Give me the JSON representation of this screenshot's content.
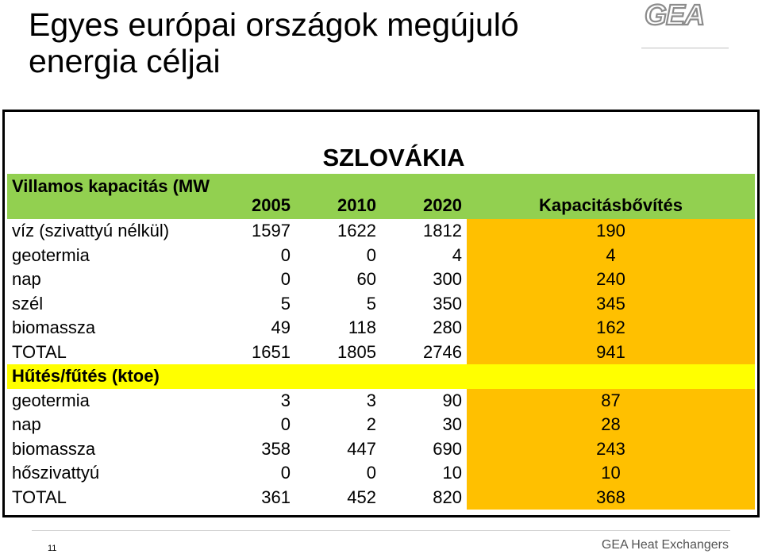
{
  "title": "Egyes európai országok megújuló energia céljai",
  "logo_text": "GEA",
  "country": "SZLOVÁKIA",
  "headers": {
    "label": "Villamos kapacitás (MW)",
    "y2005": "2005",
    "y2010": "2010",
    "y2020": "2020",
    "expansion": "Kapacitásbővítés"
  },
  "electric_rows": [
    {
      "label": "víz (szivattyú nélkül)",
      "v2005": "1597",
      "v2010": "1622",
      "v2020": "1812",
      "expansion": "190"
    },
    {
      "label": "geotermia",
      "v2005": "0",
      "v2010": "0",
      "v2020": "4",
      "expansion": "4"
    },
    {
      "label": "nap",
      "v2005": "0",
      "v2010": "60",
      "v2020": "300",
      "expansion": "240"
    },
    {
      "label": "szél",
      "v2005": "5",
      "v2010": "5",
      "v2020": "350",
      "expansion": "345"
    },
    {
      "label": "biomassza",
      "v2005": "49",
      "v2010": "118",
      "v2020": "280",
      "expansion": "162"
    },
    {
      "label": "TOTAL",
      "v2005": "1651",
      "v2010": "1805",
      "v2020": "2746",
      "expansion": "941"
    }
  ],
  "heating_header": "Hűtés/fűtés (ktoe)",
  "heating_rows": [
    {
      "label": "geotermia",
      "v2005": "3",
      "v2010": "3",
      "v2020": "90",
      "expansion": "87"
    },
    {
      "label": "nap",
      "v2005": "0",
      "v2010": "2",
      "v2020": "30",
      "expansion": "28"
    },
    {
      "label": "biomassza",
      "v2005": "358",
      "v2010": "447",
      "v2020": "690",
      "expansion": "243"
    },
    {
      "label": "hőszivattyú",
      "v2005": "0",
      "v2010": "0",
      "v2020": "10",
      "expansion": "10"
    },
    {
      "label": "TOTAL",
      "v2005": "361",
      "v2010": "452",
      "v2020": "820",
      "expansion": "368"
    }
  ],
  "footer": {
    "page_number": "11",
    "company": "GEA Heat Exchangers"
  },
  "colors": {
    "header_green": "#92d050",
    "section_yellow": "#ffff00",
    "highlight_orange": "#ffc000"
  }
}
